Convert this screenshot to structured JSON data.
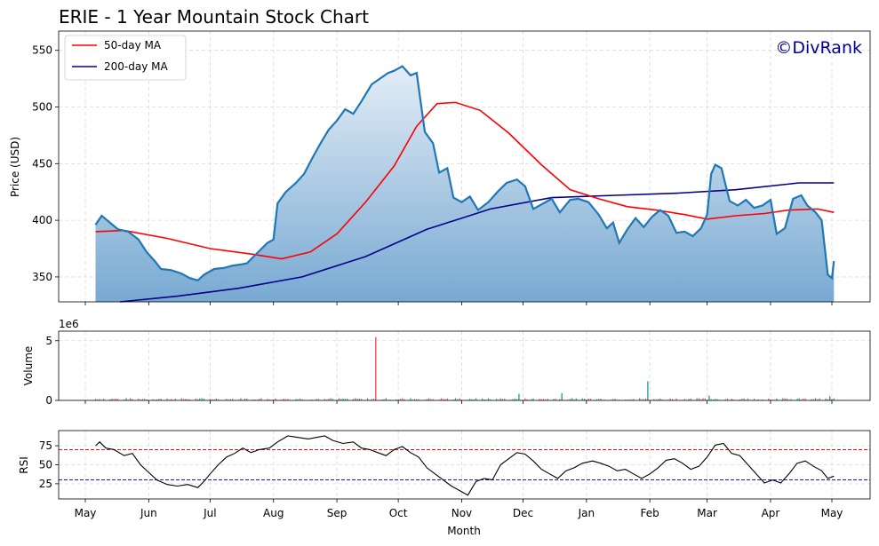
{
  "chart_data": [
    {
      "type": "area",
      "title": "ERIE - 1 Year Mountain Stock Chart",
      "ylabel": "Price (USD)",
      "ylim": [
        328,
        567
      ],
      "yticks": [
        350,
        400,
        450,
        500,
        550
      ],
      "grid": true,
      "legend_position": "top-left",
      "watermark": "©DivRank",
      "x_start": "2024-05-06",
      "x_end": "2025-05-02",
      "series": [
        {
          "name": "Price",
          "color": "#1f77b4",
          "points": [
            [
              "2024-05-06",
              396
            ],
            [
              "2024-05-09",
              404
            ],
            [
              "2024-05-13",
              398
            ],
            [
              "2024-05-17",
              392
            ],
            [
              "2024-05-22",
              390
            ],
            [
              "2024-05-27",
              383
            ],
            [
              "2024-05-31",
              372
            ],
            [
              "2024-06-04",
              364
            ],
            [
              "2024-06-07",
              357
            ],
            [
              "2024-06-12",
              356
            ],
            [
              "2024-06-17",
              353
            ],
            [
              "2024-06-21",
              349
            ],
            [
              "2024-06-25",
              347
            ],
            [
              "2024-06-28",
              352
            ],
            [
              "2024-07-03",
              357
            ],
            [
              "2024-07-08",
              358
            ],
            [
              "2024-07-12",
              360
            ],
            [
              "2024-07-16",
              361
            ],
            [
              "2024-07-19",
              362
            ],
            [
              "2024-07-24",
              371
            ],
            [
              "2024-07-29",
              380
            ],
            [
              "2024-08-01",
              383
            ],
            [
              "2024-08-03",
              415
            ],
            [
              "2024-08-07",
              425
            ],
            [
              "2024-08-12",
              433
            ],
            [
              "2024-08-16",
              441
            ],
            [
              "2024-08-20",
              455
            ],
            [
              "2024-08-24",
              468
            ],
            [
              "2024-08-28",
              480
            ],
            [
              "2024-09-01",
              488
            ],
            [
              "2024-09-05",
              498
            ],
            [
              "2024-09-09",
              494
            ],
            [
              "2024-09-13",
              505
            ],
            [
              "2024-09-18",
              520
            ],
            [
              "2024-09-22",
              525
            ],
            [
              "2024-09-26",
              530
            ],
            [
              "2024-09-29",
              532
            ],
            [
              "2024-10-03",
              536
            ],
            [
              "2024-10-07",
              528
            ],
            [
              "2024-10-10",
              530
            ],
            [
              "2024-10-14",
              478
            ],
            [
              "2024-10-18",
              468
            ],
            [
              "2024-10-21",
              442
            ],
            [
              "2024-10-25",
              446
            ],
            [
              "2024-10-28",
              420
            ],
            [
              "2024-11-01",
              416
            ],
            [
              "2024-11-05",
              421
            ],
            [
              "2024-11-09",
              409
            ],
            [
              "2024-11-14",
              416
            ],
            [
              "2024-11-19",
              426
            ],
            [
              "2024-11-23",
              433
            ],
            [
              "2024-11-28",
              436
            ],
            [
              "2024-12-02",
              430
            ],
            [
              "2024-12-06",
              410
            ],
            [
              "2024-12-11",
              415
            ],
            [
              "2024-12-15",
              419
            ],
            [
              "2024-12-19",
              407
            ],
            [
              "2024-12-24",
              418
            ],
            [
              "2024-12-28",
              419
            ],
            [
              "2025-01-02",
              416
            ],
            [
              "2025-01-07",
              405
            ],
            [
              "2025-01-11",
              393
            ],
            [
              "2025-01-14",
              398
            ],
            [
              "2025-01-17",
              380
            ],
            [
              "2025-01-21",
              392
            ],
            [
              "2025-01-25",
              402
            ],
            [
              "2025-01-29",
              394
            ],
            [
              "2025-02-02",
              403
            ],
            [
              "2025-02-06",
              409
            ],
            [
              "2025-02-10",
              404
            ],
            [
              "2025-02-14",
              389
            ],
            [
              "2025-02-18",
              390
            ],
            [
              "2025-02-22",
              386
            ],
            [
              "2025-02-26",
              393
            ],
            [
              "2025-03-01",
              405
            ],
            [
              "2025-03-03",
              441
            ],
            [
              "2025-03-05",
              449
            ],
            [
              "2025-03-08",
              446
            ],
            [
              "2025-03-12",
              417
            ],
            [
              "2025-03-16",
              413
            ],
            [
              "2025-03-20",
              418
            ],
            [
              "2025-03-24",
              411
            ],
            [
              "2025-03-28",
              413
            ],
            [
              "2025-04-01",
              418
            ],
            [
              "2025-04-04",
              388
            ],
            [
              "2025-04-08",
              393
            ],
            [
              "2025-04-12",
              419
            ],
            [
              "2025-04-16",
              422
            ],
            [
              "2025-04-19",
              413
            ],
            [
              "2025-04-23",
              407
            ],
            [
              "2025-04-26",
              400
            ],
            [
              "2025-04-29",
              352
            ],
            [
              "2025-05-01",
              349
            ],
            [
              "2025-05-02",
              364
            ]
          ]
        },
        {
          "name": "50-day MA",
          "color": "#ff0000",
          "points": [
            [
              "2024-05-06",
              390
            ],
            [
              "2024-05-20",
              391
            ],
            [
              "2024-06-10",
              384
            ],
            [
              "2024-07-01",
              375
            ],
            [
              "2024-07-22",
              370
            ],
            [
              "2024-08-05",
              366
            ],
            [
              "2024-08-19",
              372
            ],
            [
              "2024-09-01",
              388
            ],
            [
              "2024-09-15",
              416
            ],
            [
              "2024-09-29",
              448
            ],
            [
              "2024-10-10",
              483
            ],
            [
              "2024-10-20",
              503
            ],
            [
              "2024-10-29",
              504
            ],
            [
              "2024-11-10",
              497
            ],
            [
              "2024-11-24",
              477
            ],
            [
              "2024-12-10",
              449
            ],
            [
              "2024-12-24",
              427
            ],
            [
              "2025-01-07",
              419
            ],
            [
              "2025-01-21",
              412
            ],
            [
              "2025-02-04",
              409
            ],
            [
              "2025-02-18",
              405
            ],
            [
              "2025-03-01",
              401
            ],
            [
              "2025-03-15",
              404
            ],
            [
              "2025-03-29",
              406
            ],
            [
              "2025-04-10",
              409
            ],
            [
              "2025-04-24",
              410
            ],
            [
              "2025-05-02",
              407
            ]
          ]
        },
        {
          "name": "200-day MA",
          "color": "#00008b",
          "points": [
            [
              "2024-05-18",
              328
            ],
            [
              "2024-06-15",
              333
            ],
            [
              "2024-07-15",
              340
            ],
            [
              "2024-08-15",
              350
            ],
            [
              "2024-09-15",
              368
            ],
            [
              "2024-10-15",
              392
            ],
            [
              "2024-11-15",
              410
            ],
            [
              "2024-12-15",
              420
            ],
            [
              "2025-01-15",
              422
            ],
            [
              "2025-02-15",
              424
            ],
            [
              "2025-03-15",
              427
            ],
            [
              "2025-04-15",
              433
            ],
            [
              "2025-05-02",
              433
            ]
          ]
        }
      ]
    },
    {
      "type": "bar",
      "ylabel": "Volume",
      "ylim": [
        0,
        5.8
      ],
      "yticks": [
        0,
        5
      ],
      "scale_label": "1e6",
      "grid": true,
      "up_color": "#26a69a",
      "down_color": "#ef5350",
      "spikes": [
        {
          "date": "2024-09-20",
          "value": 5.3,
          "dir": "down"
        },
        {
          "date": "2024-11-29",
          "value": 0.55,
          "dir": "up"
        },
        {
          "date": "2024-12-20",
          "value": 0.6,
          "dir": "up"
        },
        {
          "date": "2025-01-31",
          "value": 1.6,
          "dir": "up"
        },
        {
          "date": "2025-03-02",
          "value": 0.4,
          "dir": "up"
        },
        {
          "date": "2025-04-30",
          "value": 0.35,
          "dir": "up"
        }
      ]
    },
    {
      "type": "line",
      "ylabel": "RSI",
      "ylim": [
        5,
        95
      ],
      "yticks": [
        25,
        50,
        75
      ],
      "grid": true,
      "overbought": 70,
      "oversold": 30,
      "overbought_color": "#cc0000",
      "oversold_color": "#00008b",
      "xlabel": "Month",
      "month_ticks": [
        "May",
        "Jun",
        "Jul",
        "Aug",
        "Sep",
        "Oct",
        "Nov",
        "Dec",
        "Jan",
        "Feb",
        "Mar",
        "Apr",
        "May"
      ],
      "month_tick_dates": [
        "2024-05-01",
        "2024-06-01",
        "2024-07-01",
        "2024-08-01",
        "2024-09-01",
        "2024-10-01",
        "2024-11-01",
        "2024-12-01",
        "2025-01-01",
        "2025-02-01",
        "2025-03-01",
        "2025-04-01",
        "2025-05-01"
      ],
      "points": [
        [
          "2024-05-06",
          75
        ],
        [
          "2024-05-08",
          80
        ],
        [
          "2024-05-11",
          72
        ],
        [
          "2024-05-15",
          70
        ],
        [
          "2024-05-20",
          62
        ],
        [
          "2024-05-24",
          65
        ],
        [
          "2024-05-28",
          50
        ],
        [
          "2024-06-01",
          40
        ],
        [
          "2024-06-05",
          30
        ],
        [
          "2024-06-10",
          24
        ],
        [
          "2024-06-15",
          22
        ],
        [
          "2024-06-20",
          24
        ],
        [
          "2024-06-25",
          20
        ],
        [
          "2024-06-28",
          28
        ],
        [
          "2024-07-01",
          38
        ],
        [
          "2024-07-05",
          50
        ],
        [
          "2024-07-09",
          60
        ],
        [
          "2024-07-13",
          65
        ],
        [
          "2024-07-17",
          72
        ],
        [
          "2024-07-21",
          66
        ],
        [
          "2024-07-25",
          70
        ],
        [
          "2024-07-30",
          72
        ],
        [
          "2024-08-03",
          80
        ],
        [
          "2024-08-08",
          88
        ],
        [
          "2024-08-13",
          86
        ],
        [
          "2024-08-18",
          84
        ],
        [
          "2024-08-22",
          86
        ],
        [
          "2024-08-26",
          88
        ],
        [
          "2024-08-30",
          82
        ],
        [
          "2024-09-04",
          78
        ],
        [
          "2024-09-09",
          80
        ],
        [
          "2024-09-13",
          72
        ],
        [
          "2024-09-17",
          70
        ],
        [
          "2024-09-21",
          66
        ],
        [
          "2024-09-25",
          62
        ],
        [
          "2024-09-29",
          70
        ],
        [
          "2024-10-03",
          74
        ],
        [
          "2024-10-07",
          66
        ],
        [
          "2024-10-11",
          60
        ],
        [
          "2024-10-15",
          46
        ],
        [
          "2024-10-19",
          38
        ],
        [
          "2024-10-23",
          30
        ],
        [
          "2024-10-27",
          22
        ],
        [
          "2024-10-31",
          16
        ],
        [
          "2024-11-04",
          10
        ],
        [
          "2024-11-08",
          28
        ],
        [
          "2024-11-12",
          32
        ],
        [
          "2024-11-16",
          30
        ],
        [
          "2024-11-20",
          50
        ],
        [
          "2024-11-24",
          58
        ],
        [
          "2024-11-28",
          66
        ],
        [
          "2024-12-02",
          64
        ],
        [
          "2024-12-06",
          55
        ],
        [
          "2024-12-10",
          44
        ],
        [
          "2024-12-14",
          38
        ],
        [
          "2024-12-18",
          32
        ],
        [
          "2024-12-22",
          42
        ],
        [
          "2024-12-26",
          46
        ],
        [
          "2024-12-30",
          52
        ],
        [
          "2025-01-04",
          55
        ],
        [
          "2025-01-08",
          52
        ],
        [
          "2025-01-12",
          48
        ],
        [
          "2025-01-16",
          42
        ],
        [
          "2025-01-20",
          44
        ],
        [
          "2025-01-24",
          38
        ],
        [
          "2025-01-28",
          32
        ],
        [
          "2025-02-01",
          38
        ],
        [
          "2025-02-05",
          46
        ],
        [
          "2025-02-09",
          56
        ],
        [
          "2025-02-13",
          58
        ],
        [
          "2025-02-17",
          52
        ],
        [
          "2025-02-21",
          44
        ],
        [
          "2025-02-25",
          48
        ],
        [
          "2025-03-01",
          60
        ],
        [
          "2025-03-05",
          76
        ],
        [
          "2025-03-09",
          78
        ],
        [
          "2025-03-13",
          65
        ],
        [
          "2025-03-17",
          62
        ],
        [
          "2025-03-21",
          50
        ],
        [
          "2025-03-25",
          38
        ],
        [
          "2025-03-29",
          26
        ],
        [
          "2025-04-02",
          30
        ],
        [
          "2025-04-06",
          26
        ],
        [
          "2025-04-10",
          38
        ],
        [
          "2025-04-14",
          52
        ],
        [
          "2025-04-18",
          55
        ],
        [
          "2025-04-22",
          48
        ],
        [
          "2025-04-26",
          42
        ],
        [
          "2025-04-29",
          32
        ],
        [
          "2025-05-02",
          35
        ]
      ]
    }
  ]
}
